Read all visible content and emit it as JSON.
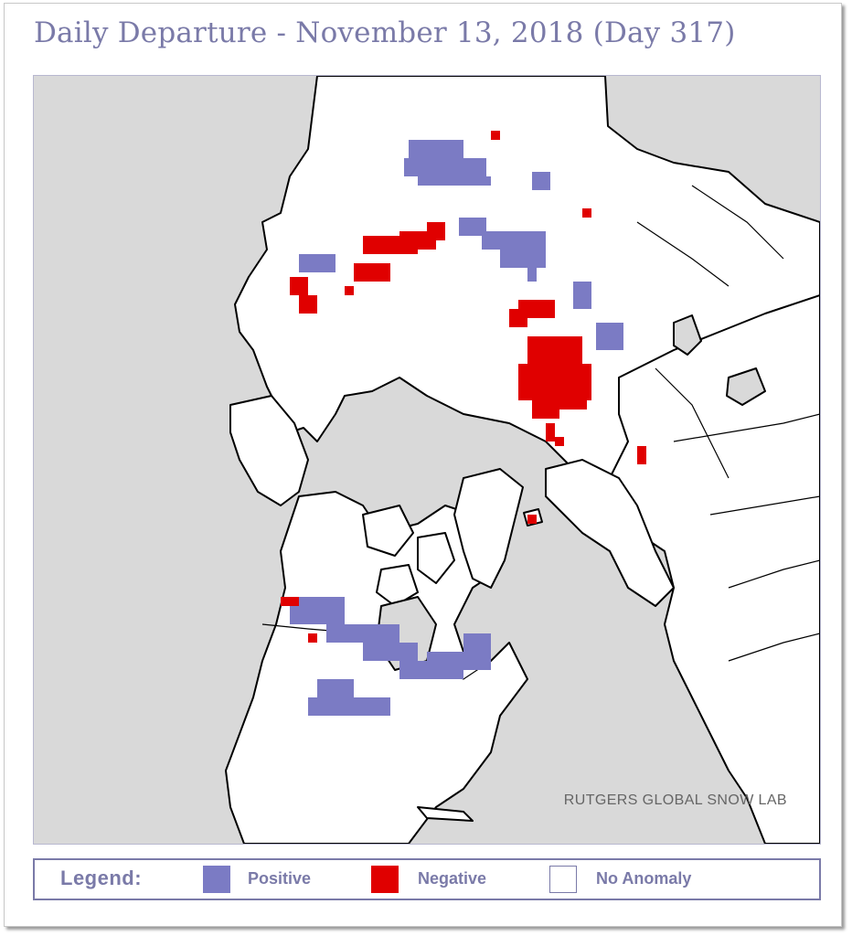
{
  "title": "Daily Departure - November 13, 2018 (Day 317)",
  "credit": "RUTGERS GLOBAL SNOW LAB",
  "legend": {
    "title": "Legend:",
    "items": [
      {
        "label": "Positive",
        "color": "#7b7bc4"
      },
      {
        "label": "Negative",
        "color": "#e00000"
      },
      {
        "label": "No Anomaly",
        "color": "#ffffff"
      }
    ]
  },
  "colors": {
    "ocean": "#d9d9d9",
    "land": "#ffffff",
    "coast": "#000000",
    "title": "#7a7aa8"
  }
}
